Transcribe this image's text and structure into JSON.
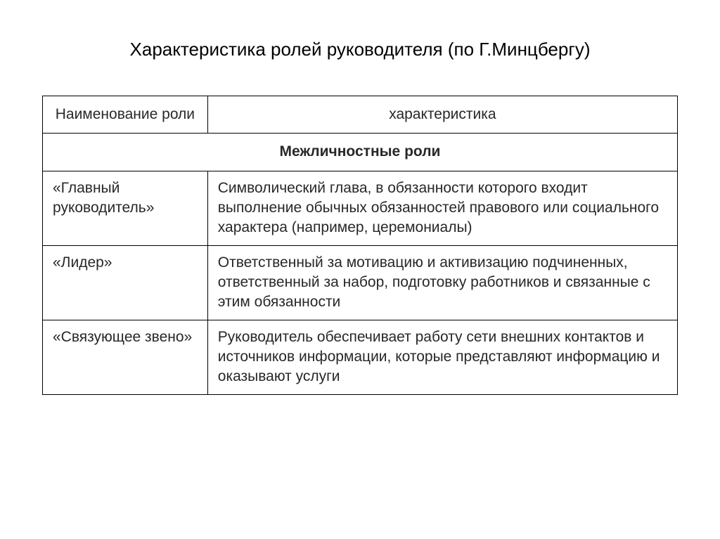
{
  "title": "Характеристика ролей руководителя (по Г.Минцбергу)",
  "table": {
    "columns": [
      "Наименование роли",
      "характеристика"
    ],
    "col_widths": [
      "26%",
      "74%"
    ],
    "section_header": "Межличностные роли",
    "rows": [
      {
        "name": "«Главный руководитель»",
        "desc": "Символический глава, в обязанности которого входит выполнение обычных обязанностей правового или социального характера (например, церемониалы)"
      },
      {
        "name": "«Лидер»",
        "desc": "Ответственный за мотивацию и активизацию подчиненных, ответственный за набор, подготовку работников и связанные с этим обязанности"
      },
      {
        "name": "«Связующее звено»",
        "desc": "Руководитель обеспечивает работу сети внешних контактов и источников информации, которые представляют информацию и оказывают услуги"
      }
    ],
    "border_color": "#000000",
    "text_color": "#282828",
    "background_color": "#ffffff",
    "title_fontsize": 26,
    "cell_fontsize": 21
  }
}
